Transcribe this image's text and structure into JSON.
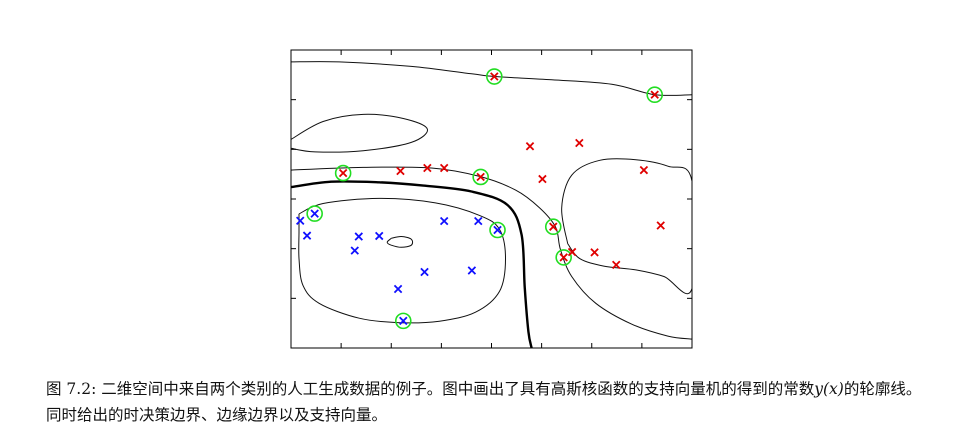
{
  "chart_data": {
    "type": "scatter",
    "title": "",
    "xlabel": "",
    "ylabel": "",
    "xlim": [
      0,
      1
    ],
    "ylim": [
      0,
      1
    ],
    "grid": false,
    "legend": "none",
    "series": [
      {
        "color": "#e00000",
        "marker": "x",
        "points": [
          [
            0.507,
            0.911
          ],
          [
            0.907,
            0.85
          ],
          [
            0.13,
            0.587
          ],
          [
            0.273,
            0.594
          ],
          [
            0.34,
            0.604
          ],
          [
            0.382,
            0.604
          ],
          [
            0.473,
            0.574
          ],
          [
            0.596,
            0.677
          ],
          [
            0.627,
            0.567
          ],
          [
            0.719,
            0.688
          ],
          [
            0.88,
            0.597
          ],
          [
            0.654,
            0.407
          ],
          [
            0.922,
            0.411
          ],
          [
            0.68,
            0.304
          ],
          [
            0.701,
            0.322
          ],
          [
            0.757,
            0.321
          ],
          [
            0.811,
            0.279
          ]
        ]
      },
      {
        "color": "#1010ff",
        "marker": "x",
        "points": [
          [
            0.059,
            0.451
          ],
          [
            0.023,
            0.427
          ],
          [
            0.04,
            0.377
          ],
          [
            0.169,
            0.374
          ],
          [
            0.22,
            0.376
          ],
          [
            0.159,
            0.327
          ],
          [
            0.382,
            0.426
          ],
          [
            0.467,
            0.426
          ],
          [
            0.515,
            0.396
          ],
          [
            0.333,
            0.255
          ],
          [
            0.451,
            0.26
          ],
          [
            0.267,
            0.198
          ],
          [
            0.28,
            0.091
          ]
        ]
      }
    ],
    "support_vectors": {
      "color": "#22dd22",
      "points": [
        [
          0.507,
          0.911
        ],
        [
          0.907,
          0.85
        ],
        [
          0.13,
          0.587
        ],
        [
          0.473,
          0.574
        ],
        [
          0.059,
          0.451
        ],
        [
          0.515,
          0.396
        ],
        [
          0.654,
          0.407
        ],
        [
          0.68,
          0.304
        ],
        [
          0.28,
          0.091
        ]
      ]
    },
    "contours": {
      "decision_boundary": [
        [
          0,
          0.54
        ],
        [
          0.1,
          0.558
        ],
        [
          0.22,
          0.556
        ],
        [
          0.33,
          0.545
        ],
        [
          0.45,
          0.525
        ],
        [
          0.54,
          0.48
        ],
        [
          0.575,
          0.38
        ],
        [
          0.583,
          0.2
        ],
        [
          0.592,
          0.055
        ],
        [
          0.6,
          0
        ]
      ],
      "margin_upper": [
        [
          0,
          0.597
        ],
        [
          0.18,
          0.606
        ],
        [
          0.35,
          0.604
        ],
        [
          0.47,
          0.576
        ],
        [
          0.56,
          0.53
        ],
        [
          0.62,
          0.47
        ],
        [
          0.66,
          0.405
        ],
        [
          0.672,
          0.33
        ],
        [
          0.7,
          0.24
        ],
        [
          0.76,
          0.15
        ],
        [
          0.85,
          0.08
        ],
        [
          0.94,
          0.04
        ],
        [
          1,
          0.03
        ]
      ],
      "margin_lower": [
        [
          0.02,
          0.45
        ],
        [
          0.08,
          0.485
        ],
        [
          0.22,
          0.502
        ],
        [
          0.36,
          0.487
        ],
        [
          0.47,
          0.445
        ],
        [
          0.52,
          0.398
        ],
        [
          0.535,
          0.3
        ],
        [
          0.52,
          0.19
        ],
        [
          0.46,
          0.12
        ],
        [
          0.37,
          0.09
        ],
        [
          0.27,
          0.085
        ],
        [
          0.17,
          0.1
        ],
        [
          0.07,
          0.15
        ],
        [
          0.03,
          0.21
        ],
        [
          0.02,
          0.3
        ],
        [
          0.02,
          0.39
        ],
        [
          0.02,
          0.45
        ]
      ],
      "top": [
        [
          0,
          0.96
        ],
        [
          0.12,
          0.96
        ],
        [
          0.3,
          0.945
        ],
        [
          0.45,
          0.92
        ],
        [
          0.507,
          0.911
        ],
        [
          0.65,
          0.9
        ],
        [
          0.8,
          0.885
        ],
        [
          0.907,
          0.85
        ],
        [
          1,
          0.85
        ]
      ],
      "upper_left_ellipse": [
        [
          0.0,
          0.7
        ],
        [
          0.08,
          0.76
        ],
        [
          0.18,
          0.784
        ],
        [
          0.28,
          0.77
        ],
        [
          0.34,
          0.735
        ],
        [
          0.3,
          0.69
        ],
        [
          0.18,
          0.662
        ],
        [
          0.06,
          0.658
        ],
        [
          0.0,
          0.67
        ]
      ],
      "right_loop": [
        [
          0.69,
          0.35
        ],
        [
          0.675,
          0.47
        ],
        [
          0.7,
          0.58
        ],
        [
          0.77,
          0.63
        ],
        [
          0.86,
          0.632
        ],
        [
          0.94,
          0.61
        ],
        [
          1,
          0.56
        ],
        [
          1,
          0.2
        ],
        [
          0.93,
          0.24
        ],
        [
          0.86,
          0.262
        ],
        [
          0.78,
          0.275
        ],
        [
          0.72,
          0.3
        ],
        [
          0.69,
          0.35
        ]
      ],
      "inner_small": [
        [
          0.25,
          0.368
        ],
        [
          0.275,
          0.374
        ],
        [
          0.3,
          0.365
        ],
        [
          0.3,
          0.345
        ],
        [
          0.275,
          0.338
        ],
        [
          0.25,
          0.345
        ],
        [
          0.24,
          0.355
        ],
        [
          0.25,
          0.368
        ]
      ]
    }
  },
  "caption": {
    "prefix": "图 7.2: 二维空间中来自两个类别的人工生成数据的例子。图中画出了具有高斯核函数的支持向量机的得到的常数",
    "math": "y(x)",
    "suffix": "的轮廓线。同时给出的时决策边界、边缘边界以及支持向量。"
  }
}
